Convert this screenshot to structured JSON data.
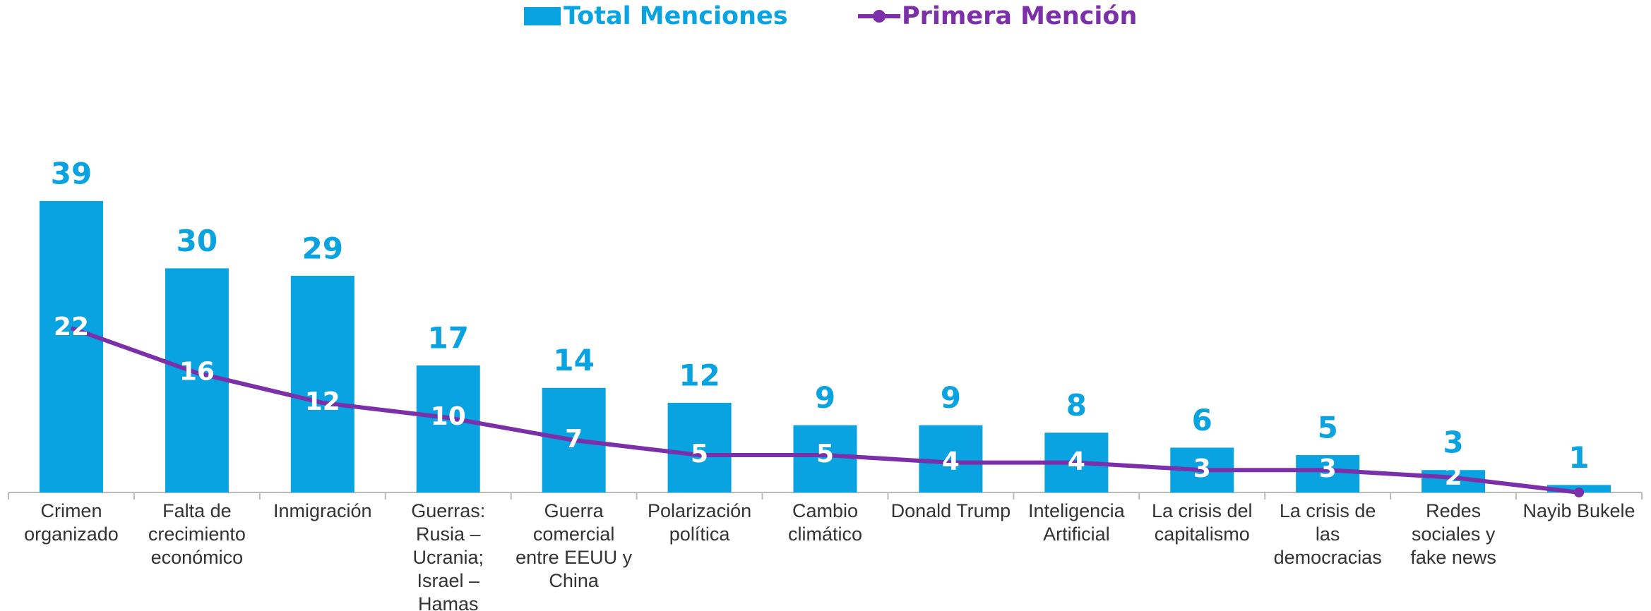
{
  "chart_data": {
    "type": "bar-line",
    "categories": [
      "Crimen organizado",
      "Falta de crecimiento económico",
      "Inmigración",
      "Guerras: Rusia – Ucrania; Israel – Hamas",
      "Guerra comercial entre EEUU y China",
      "Polarización política",
      "Cambio climático",
      "Donald Trump",
      "Inteligencia Artificial",
      "La crisis del capitalismo",
      "La crisis de las democracias",
      "Redes sociales y fake news",
      "Nayib Bukele"
    ],
    "series": [
      {
        "name": "Total Menciones",
        "type": "bar",
        "color": "#08a3e0",
        "values": [
          39,
          30,
          29,
          17,
          14,
          12,
          9,
          9,
          8,
          6,
          5,
          3,
          1
        ]
      },
      {
        "name": "Primera Mención",
        "type": "line",
        "color": "#7b2fa8",
        "values": [
          22,
          16,
          12,
          10,
          7,
          5,
          5,
          4,
          4,
          3,
          3,
          2,
          0
        ],
        "value_labels": [
          "22",
          "16",
          "12",
          "10",
          "7",
          "5",
          "5",
          "4",
          "4",
          "3",
          "3",
          "2",
          null
        ]
      }
    ]
  }
}
